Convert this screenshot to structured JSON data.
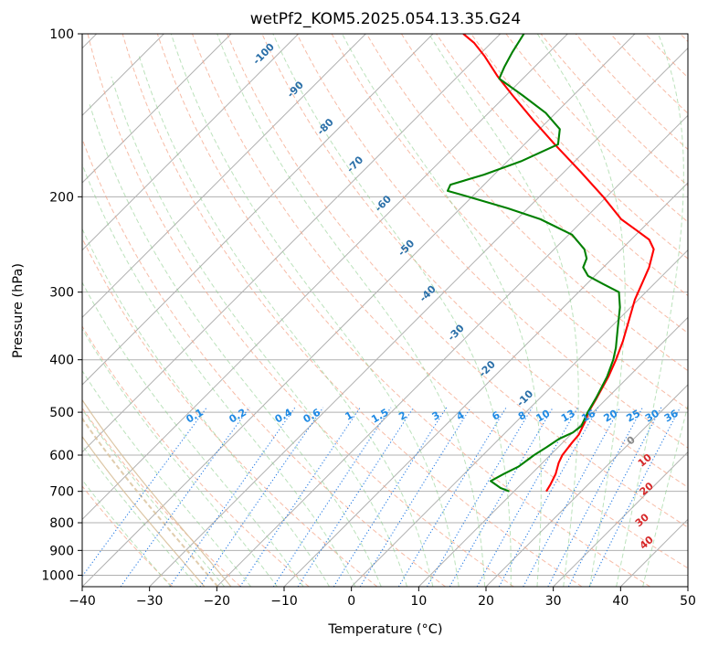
{
  "chart_data": {
    "type": "line",
    "title": "wetPf2_KOM5.2025.054.13.35.G24",
    "xlabel": "Temperature (°C)",
    "ylabel": "Pressure (hPa)",
    "xlim": [
      -40,
      50
    ],
    "ylim": [
      1050,
      100
    ],
    "y_scale": "log",
    "grid": true,
    "x_ticks": [
      -40,
      -30,
      -20,
      -10,
      0,
      10,
      20,
      30,
      40,
      50
    ],
    "y_ticks": [
      100,
      200,
      300,
      400,
      500,
      600,
      700,
      800,
      900,
      1000
    ],
    "series": [
      {
        "color": "#ff0000",
        "values": [
          {
            "p": 700,
            "t": 14.8
          },
          {
            "p": 680,
            "t": 14.4
          },
          {
            "p": 650,
            "t": 13.6
          },
          {
            "p": 620,
            "t": 12.4
          },
          {
            "p": 600,
            "t": 11.8
          },
          {
            "p": 570,
            "t": 11.4
          },
          {
            "p": 550,
            "t": 11.2
          },
          {
            "p": 520,
            "t": 10.2
          },
          {
            "p": 500,
            "t": 9.3
          },
          {
            "p": 470,
            "t": 8.4
          },
          {
            "p": 430,
            "t": 7.0
          },
          {
            "p": 400,
            "t": 5.6
          },
          {
            "p": 370,
            "t": 3.9
          },
          {
            "p": 340,
            "t": 1.8
          },
          {
            "p": 310,
            "t": -0.5
          },
          {
            "p": 290,
            "t": -1.8
          },
          {
            "p": 270,
            "t": -3.2
          },
          {
            "p": 250,
            "t": -5.2
          },
          {
            "p": 240,
            "t": -7.3
          },
          {
            "p": 230,
            "t": -10.8
          },
          {
            "p": 220,
            "t": -14.5
          },
          {
            "p": 200,
            "t": -20.5
          },
          {
            "p": 180,
            "t": -27.5
          },
          {
            "p": 160,
            "t": -35.5
          },
          {
            "p": 145,
            "t": -42.0
          },
          {
            "p": 130,
            "t": -49.0
          },
          {
            "p": 120,
            "t": -54.0
          },
          {
            "p": 110,
            "t": -59.0
          },
          {
            "p": 104,
            "t": -62.5
          },
          {
            "p": 100,
            "t": -65.5
          }
        ]
      },
      {
        "color": "#008000",
        "values": [
          {
            "p": 700,
            "t": 9.3
          },
          {
            "p": 690,
            "t": 7.5
          },
          {
            "p": 670,
            "t": 5.0
          },
          {
            "p": 650,
            "t": 5.9
          },
          {
            "p": 630,
            "t": 7.0
          },
          {
            "p": 600,
            "t": 7.6
          },
          {
            "p": 580,
            "t": 8.3
          },
          {
            "p": 560,
            "t": 8.9
          },
          {
            "p": 545,
            "t": 10.0
          },
          {
            "p": 530,
            "t": 10.3
          },
          {
            "p": 500,
            "t": 9.2
          },
          {
            "p": 470,
            "t": 8.3
          },
          {
            "p": 430,
            "t": 6.8
          },
          {
            "p": 400,
            "t": 5.2
          },
          {
            "p": 380,
            "t": 3.8
          },
          {
            "p": 350,
            "t": 1.2
          },
          {
            "p": 320,
            "t": -1.6
          },
          {
            "p": 300,
            "t": -4.0
          },
          {
            "p": 290,
            "t": -7.5
          },
          {
            "p": 280,
            "t": -11.0
          },
          {
            "p": 270,
            "t": -13.0
          },
          {
            "p": 260,
            "t": -13.8
          },
          {
            "p": 250,
            "t": -15.5
          },
          {
            "p": 235,
            "t": -19.5
          },
          {
            "p": 220,
            "t": -26.5
          },
          {
            "p": 210,
            "t": -33.0
          },
          {
            "p": 200,
            "t": -40.5
          },
          {
            "p": 195,
            "t": -44.5
          },
          {
            "p": 190,
            "t": -45.0
          },
          {
            "p": 182,
            "t": -41.5
          },
          {
            "p": 172,
            "t": -38.0
          },
          {
            "p": 160,
            "t": -35.0
          },
          {
            "p": 150,
            "t": -37.0
          },
          {
            "p": 140,
            "t": -41.5
          },
          {
            "p": 130,
            "t": -47.5
          },
          {
            "p": 121,
            "t": -53.5
          },
          {
            "p": 115,
            "t": -54.5
          },
          {
            "p": 108,
            "t": -55.5
          },
          {
            "p": 100,
            "t": -56.5
          }
        ]
      }
    ],
    "mixing_ratio_labels": [
      "0.1",
      "0.2",
      "0.4",
      "0.6",
      "1",
      "1.5",
      "2",
      "3",
      "4",
      "6",
      "8",
      "10",
      "13",
      "16",
      "20",
      "25",
      "30",
      "36"
    ],
    "dry_adiabat_labels": [
      "-100",
      "-90",
      "-80",
      "-70",
      "-60",
      "-50",
      "-40",
      "-30",
      "-20",
      "-10"
    ],
    "moist_adiabat_labels": [
      "0",
      "10",
      "20",
      "30",
      "40"
    ]
  }
}
